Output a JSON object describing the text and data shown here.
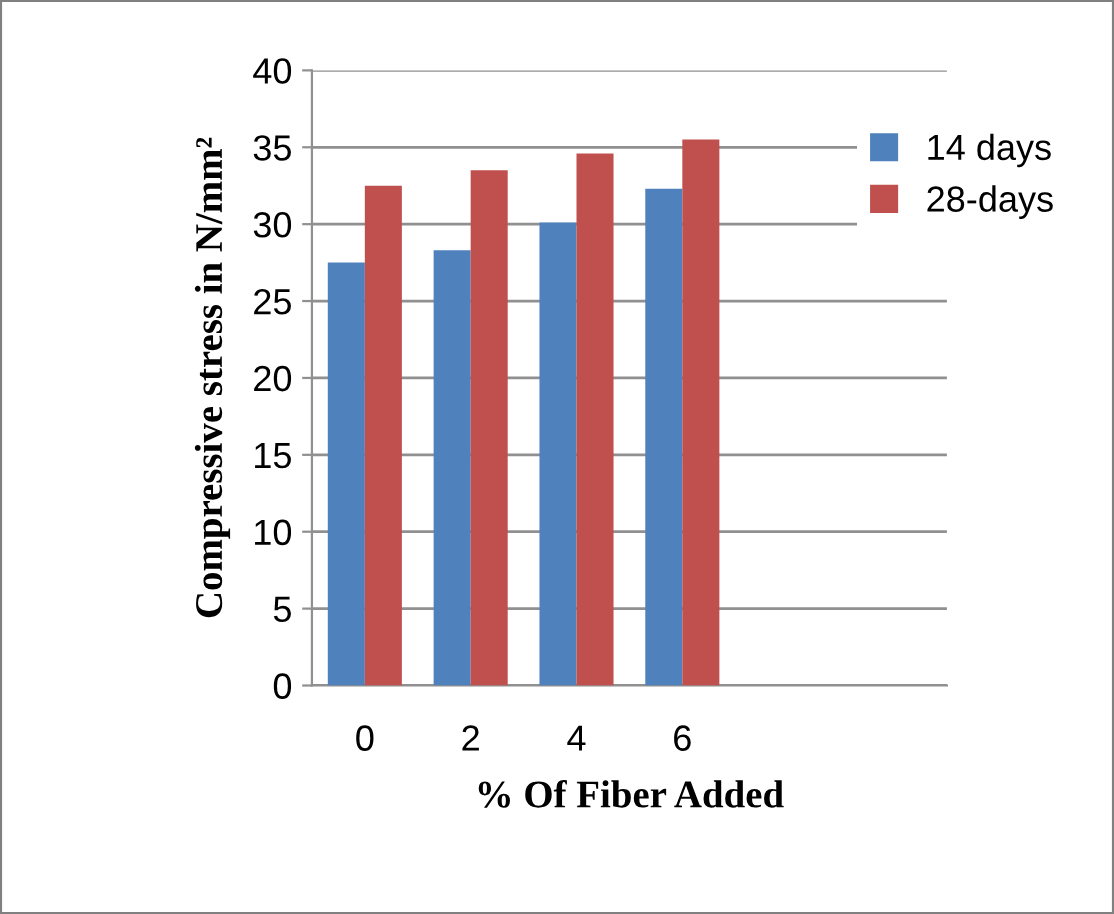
{
  "chart_data": {
    "type": "bar",
    "xlabel": "% Of Fiber Added",
    "ylabel": "Compressive stress in N/mm²",
    "categories": [
      "0",
      "2",
      "4",
      "6",
      null,
      null
    ],
    "series": [
      {
        "name": "14 days",
        "color": "#4f81bd",
        "values": [
          27.5,
          28.3,
          30.1,
          32.3,
          null,
          null
        ]
      },
      {
        "name": "28-days",
        "color": "#c0504d",
        "values": [
          32.5,
          33.5,
          34.6,
          35.5,
          null,
          null
        ]
      }
    ],
    "ylim": [
      0,
      40
    ],
    "yticks": [
      0,
      5,
      10,
      15,
      20,
      25,
      30,
      35,
      40
    ],
    "grid": "y",
    "legend": "top right"
  }
}
